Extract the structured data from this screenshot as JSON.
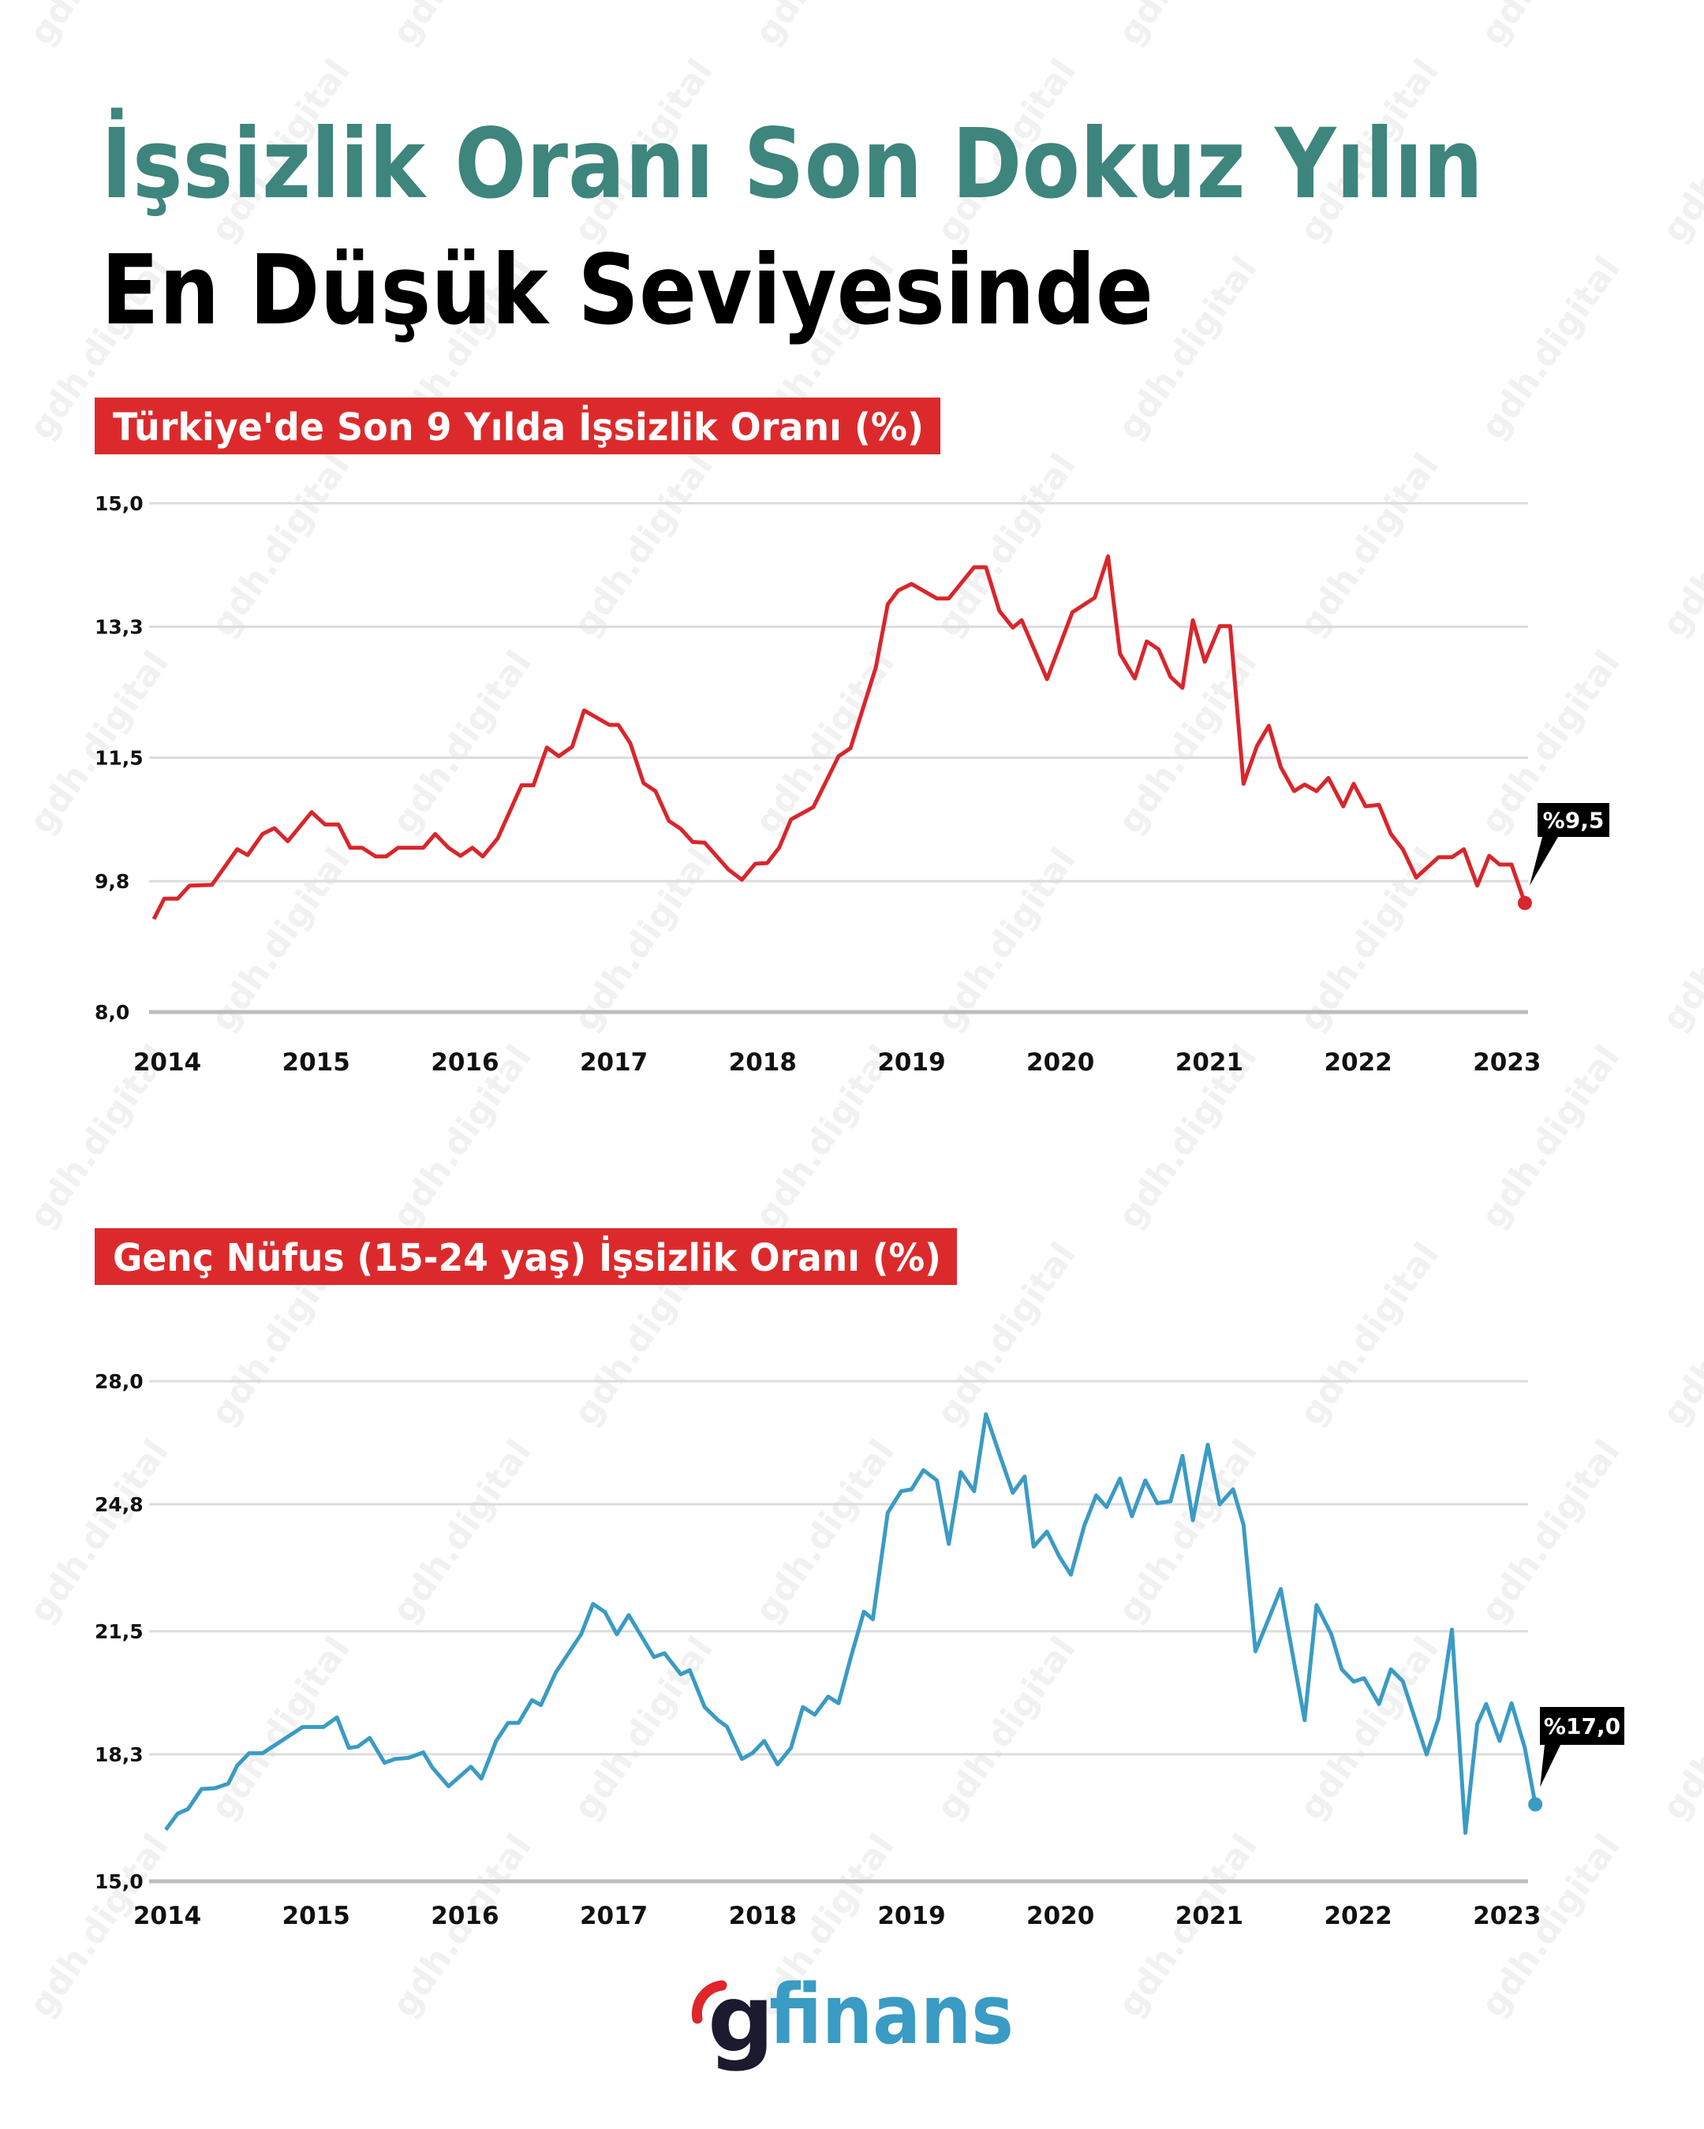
{
  "header": {
    "title_line1": "İşsizlik Oranı Son Dokuz Yılın",
    "title_line2": "En Düşük Seviyesinde",
    "title_color": "#3d857d"
  },
  "watermark": "gdh.digital",
  "logo": {
    "g": "g",
    "text": "finans",
    "g_color": "#1b1a2e",
    "text_color": "#3a9bc4",
    "accent_color": "#e0252b"
  },
  "chart_data": [
    {
      "type": "line",
      "title": "Türkiye'de Son 9 Yılda İşsizlik Oranı (%)",
      "xlabel": "",
      "ylabel": "",
      "ylim": [
        8.0,
        15.0
      ],
      "yticks": [
        "15,0",
        "13,3",
        "11,5",
        "9,8",
        "8,0"
      ],
      "ytick_values": [
        15.0,
        13.3,
        11.5,
        9.8,
        8.0
      ],
      "xticks": [
        "2014",
        "2015",
        "2016",
        "2017",
        "2018",
        "2019",
        "2020",
        "2021",
        "2022",
        "2023"
      ],
      "grid": true,
      "color": "#d9262b",
      "last_label": "%9,5",
      "series": [
        {
          "points": [
            [
              2013.91,
              9.28
            ],
            [
              2013.98,
              9.56
            ],
            [
              2014.07,
              9.56
            ],
            [
              2014.15,
              9.74
            ],
            [
              2014.3,
              9.75
            ],
            [
              2014.47,
              10.24
            ],
            [
              2014.54,
              10.16
            ],
            [
              2014.64,
              10.45
            ],
            [
              2014.72,
              10.53
            ],
            [
              2014.81,
              10.35
            ],
            [
              2014.97,
              10.75
            ],
            [
              2015.06,
              10.58
            ],
            [
              2015.15,
              10.58
            ],
            [
              2015.23,
              10.26
            ],
            [
              2015.31,
              10.26
            ],
            [
              2015.4,
              10.14
            ],
            [
              2015.47,
              10.14
            ],
            [
              2015.55,
              10.26
            ],
            [
              2015.72,
              10.26
            ],
            [
              2015.8,
              10.45
            ],
            [
              2015.89,
              10.26
            ],
            [
              2015.97,
              10.15
            ],
            [
              2016.05,
              10.26
            ],
            [
              2016.12,
              10.14
            ],
            [
              2016.22,
              10.39
            ],
            [
              2016.38,
              11.12
            ],
            [
              2016.46,
              11.12
            ],
            [
              2016.55,
              11.64
            ],
            [
              2016.63,
              11.52
            ],
            [
              2016.72,
              11.65
            ],
            [
              2016.8,
              12.15
            ],
            [
              2016.97,
              11.95
            ],
            [
              2017.03,
              11.95
            ],
            [
              2017.11,
              11.7
            ],
            [
              2017.2,
              11.15
            ],
            [
              2017.28,
              11.04
            ],
            [
              2017.37,
              10.63
            ],
            [
              2017.45,
              10.52
            ],
            [
              2017.53,
              10.34
            ],
            [
              2017.61,
              10.33
            ],
            [
              2017.77,
              9.96
            ],
            [
              2017.86,
              9.82
            ],
            [
              2017.95,
              10.04
            ],
            [
              2018.03,
              10.05
            ],
            [
              2018.11,
              10.26
            ],
            [
              2018.19,
              10.65
            ],
            [
              2018.34,
              10.82
            ],
            [
              2018.51,
              11.52
            ],
            [
              2018.59,
              11.63
            ],
            [
              2018.76,
              12.74
            ],
            [
              2018.84,
              13.61
            ],
            [
              2018.91,
              13.8
            ],
            [
              2019.0,
              13.89
            ],
            [
              2019.17,
              13.69
            ],
            [
              2019.25,
              13.69
            ],
            [
              2019.42,
              14.12
            ],
            [
              2019.5,
              14.12
            ],
            [
              2019.59,
              13.52
            ],
            [
              2019.68,
              13.29
            ],
            [
              2019.74,
              13.39
            ],
            [
              2019.91,
              12.58
            ],
            [
              2020.08,
              13.5
            ],
            [
              2020.23,
              13.7
            ],
            [
              2020.32,
              14.27
            ],
            [
              2020.4,
              12.93
            ],
            [
              2020.5,
              12.59
            ],
            [
              2020.58,
              13.1
            ],
            [
              2020.66,
              12.99
            ],
            [
              2020.74,
              12.61
            ],
            [
              2020.82,
              12.46
            ],
            [
              2020.89,
              13.39
            ],
            [
              2020.97,
              12.82
            ],
            [
              2021.07,
              13.31
            ],
            [
              2021.14,
              13.31
            ],
            [
              2021.23,
              11.14
            ],
            [
              2021.32,
              11.66
            ],
            [
              2021.4,
              11.94
            ],
            [
              2021.48,
              11.37
            ],
            [
              2021.57,
              11.04
            ],
            [
              2021.64,
              11.13
            ],
            [
              2021.72,
              11.04
            ],
            [
              2021.8,
              11.22
            ],
            [
              2021.9,
              10.83
            ],
            [
              2021.97,
              11.14
            ],
            [
              2022.05,
              10.83
            ],
            [
              2022.14,
              10.85
            ],
            [
              2022.22,
              10.45
            ],
            [
              2022.3,
              10.24
            ],
            [
              2022.39,
              9.85
            ],
            [
              2022.54,
              10.13
            ],
            [
              2022.63,
              10.13
            ],
            [
              2022.71,
              10.24
            ],
            [
              2022.8,
              9.74
            ],
            [
              2022.88,
              10.15
            ],
            [
              2022.95,
              10.03
            ],
            [
              2023.03,
              10.03
            ],
            [
              2023.12,
              9.5
            ]
          ]
        }
      ]
    },
    {
      "type": "line",
      "title": "Genç Nüfus (15-24 yaş) İşsizlik Oranı (%)",
      "xlabel": "",
      "ylabel": "",
      "ylim": [
        15.0,
        28.0
      ],
      "yticks": [
        "28,0",
        "24,8",
        "21,5",
        "18,3",
        "15,0"
      ],
      "ytick_values": [
        28.0,
        24.8,
        21.5,
        18.3,
        15.0
      ],
      "xticks": [
        "2014",
        "2015",
        "2016",
        "2017",
        "2018",
        "2019",
        "2020",
        "2021",
        "2022",
        "2023"
      ],
      "grid": true,
      "color": "#3a9bc4",
      "last_label": "%17,0",
      "series": [
        {
          "points": [
            [
              2013.99,
              16.34
            ],
            [
              2014.07,
              16.76
            ],
            [
              2014.14,
              16.88
            ],
            [
              2014.23,
              17.4
            ],
            [
              2014.32,
              17.42
            ],
            [
              2014.41,
              17.54
            ],
            [
              2014.47,
              18.01
            ],
            [
              2014.55,
              18.33
            ],
            [
              2014.64,
              18.33
            ],
            [
              2014.91,
              19.01
            ],
            [
              2015.05,
              19.01
            ],
            [
              2015.14,
              19.26
            ],
            [
              2015.22,
              18.47
            ],
            [
              2015.28,
              18.5
            ],
            [
              2015.36,
              18.73
            ],
            [
              2015.46,
              18.08
            ],
            [
              2015.53,
              18.18
            ],
            [
              2015.62,
              18.21
            ],
            [
              2015.72,
              18.35
            ],
            [
              2015.78,
              17.96
            ],
            [
              2015.89,
              17.47
            ],
            [
              2016.04,
              17.98
            ],
            [
              2016.11,
              17.67
            ],
            [
              2016.21,
              18.65
            ],
            [
              2016.29,
              19.12
            ],
            [
              2016.36,
              19.12
            ],
            [
              2016.45,
              19.71
            ],
            [
              2016.51,
              19.58
            ],
            [
              2016.61,
              20.43
            ],
            [
              2016.78,
              21.42
            ],
            [
              2016.86,
              22.21
            ],
            [
              2016.94,
              22.0
            ],
            [
              2017.02,
              21.42
            ],
            [
              2017.1,
              21.92
            ],
            [
              2017.27,
              20.83
            ],
            [
              2017.34,
              20.93
            ],
            [
              2017.45,
              20.38
            ],
            [
              2017.51,
              20.49
            ],
            [
              2017.61,
              19.53
            ],
            [
              2017.7,
              19.19
            ],
            [
              2017.76,
              19.02
            ],
            [
              2017.86,
              18.18
            ],
            [
              2017.93,
              18.33
            ],
            [
              2018.01,
              18.65
            ],
            [
              2018.1,
              18.04
            ],
            [
              2018.19,
              18.47
            ],
            [
              2018.27,
              19.53
            ],
            [
              2018.35,
              19.33
            ],
            [
              2018.44,
              19.8
            ],
            [
              2018.51,
              19.63
            ],
            [
              2018.59,
              20.79
            ],
            [
              2018.68,
              22.01
            ],
            [
              2018.74,
              21.81
            ],
            [
              2018.84,
              24.58
            ],
            [
              2018.93,
              25.14
            ],
            [
              2019.0,
              25.19
            ],
            [
              2019.08,
              25.69
            ],
            [
              2019.17,
              25.42
            ],
            [
              2019.25,
              23.77
            ],
            [
              2019.33,
              25.64
            ],
            [
              2019.42,
              25.14
            ],
            [
              2019.5,
              27.14
            ],
            [
              2019.59,
              26.11
            ],
            [
              2019.68,
              25.1
            ],
            [
              2019.76,
              25.52
            ],
            [
              2019.82,
              23.7
            ],
            [
              2019.91,
              24.09
            ],
            [
              2019.99,
              23.46
            ],
            [
              2020.07,
              22.97
            ],
            [
              2020.16,
              24.24
            ],
            [
              2020.24,
              25.03
            ],
            [
              2020.31,
              24.73
            ],
            [
              2020.4,
              25.47
            ],
            [
              2020.48,
              24.49
            ],
            [
              2020.57,
              25.42
            ],
            [
              2020.65,
              24.83
            ],
            [
              2020.74,
              24.88
            ],
            [
              2020.82,
              26.06
            ],
            [
              2020.89,
              24.39
            ],
            [
              2020.99,
              26.35
            ],
            [
              2021.07,
              24.8
            ],
            [
              2021.16,
              25.19
            ],
            [
              2021.23,
              24.27
            ],
            [
              2021.31,
              20.98
            ],
            [
              2021.48,
              22.6
            ],
            [
              2021.64,
              19.19
            ],
            [
              2021.72,
              22.18
            ],
            [
              2021.82,
              21.42
            ],
            [
              2021.89,
              20.51
            ],
            [
              2021.97,
              20.19
            ],
            [
              2022.04,
              20.28
            ],
            [
              2022.14,
              19.61
            ],
            [
              2022.22,
              20.51
            ],
            [
              2022.3,
              20.2
            ],
            [
              2022.46,
              18.3
            ],
            [
              2022.54,
              19.24
            ],
            [
              2022.63,
              21.54
            ],
            [
              2022.72,
              16.26
            ],
            [
              2022.8,
              19.09
            ],
            [
              2022.86,
              19.61
            ],
            [
              2022.95,
              18.65
            ],
            [
              2023.03,
              19.63
            ],
            [
              2023.12,
              18.47
            ],
            [
              2023.19,
              17.0
            ]
          ]
        }
      ]
    }
  ]
}
